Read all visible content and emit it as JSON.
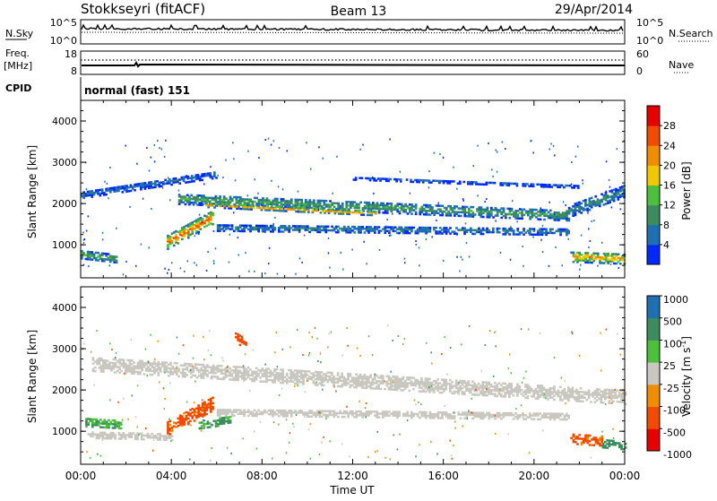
{
  "header": {
    "station": "Stokkseyri (fitACF)",
    "beam": "Beam 13",
    "date": "29/Apr/2014"
  },
  "noise_panel": {
    "left_label": "N.Sky",
    "left_ticks": [
      "10^5",
      "10^0"
    ],
    "right_ticks": [
      "10^5",
      "10^0"
    ],
    "right_label": "N.Search"
  },
  "freq_panel": {
    "left_label_line1": "Freq.",
    "left_label_line2": "[MHz]",
    "left_ticks": [
      "18",
      "8"
    ],
    "right_ticks": [
      "60",
      "0"
    ],
    "right_label": "Nave"
  },
  "cpid": {
    "label": "CPID",
    "value": "normal (fast) 151"
  },
  "time_axis": {
    "xlabel": "Time UT",
    "ticks": [
      "00:00",
      "04:00",
      "08:00",
      "12:00",
      "16:00",
      "20:00",
      "00:00"
    ]
  },
  "colors": {
    "power_scale": [
      "#0028ff",
      "#1f6fb4",
      "#3c8c5f",
      "#4cc03c",
      "#f0c800",
      "#f08c00",
      "#f04b00",
      "#e60000"
    ],
    "velocity_scale": [
      "#e60000",
      "#f04b00",
      "#f08c00",
      "#c8c8c0",
      "#4cc03c",
      "#3c8c5f",
      "#1f6fb4"
    ]
  },
  "chart_data": [
    {
      "type": "heatmap",
      "title": "",
      "xlabel": "Time UT",
      "ylabel": "Slant Range [km]",
      "x_unit": "hours UT",
      "xlim": [
        0,
        24
      ],
      "ylim": [
        200,
        4500
      ],
      "yticks": [
        "1000",
        "2000",
        "3000",
        "4000"
      ],
      "colorbar": {
        "label": "Power [dB]",
        "ticks": [
          "4",
          "8",
          "12",
          "16",
          "20",
          "24",
          "28"
        ],
        "range": [
          0,
          30
        ]
      },
      "features": [
        {
          "name": "band_main",
          "start_h": 4.3,
          "end_h": 21.5,
          "range_start_km": 2100,
          "range_end_km": 1700,
          "width_km": 260,
          "power_db": 12
        },
        {
          "name": "band_main_core",
          "start_h": 5.5,
          "end_h": 13.0,
          "range_start_km": 1950,
          "range_end_km": 1750,
          "width_km": 110,
          "power_db": 24
        },
        {
          "name": "band_lower",
          "start_h": 6.0,
          "end_h": 21.5,
          "range_start_km": 1400,
          "range_end_km": 1300,
          "width_km": 160,
          "power_db": 8
        },
        {
          "name": "band_upper",
          "start_h": 0.0,
          "end_h": 6.0,
          "range_start_km": 2200,
          "range_end_km": 2700,
          "width_km": 180,
          "power_db": 6
        },
        {
          "name": "band_high",
          "start_h": 12.0,
          "end_h": 22.0,
          "range_start_km": 2600,
          "range_end_km": 2400,
          "width_km": 80,
          "power_db": 5
        },
        {
          "name": "patch_0400",
          "start_h": 3.8,
          "end_h": 5.8,
          "range_start_km": 1050,
          "range_end_km": 1650,
          "width_km": 330,
          "power_db": 26
        },
        {
          "name": "patch_0000",
          "start_h": 0.0,
          "end_h": 1.6,
          "range_start_km": 750,
          "range_end_km": 650,
          "width_km": 200,
          "power_db": 14
        },
        {
          "name": "patch_2200",
          "start_h": 21.6,
          "end_h": 24.0,
          "range_start_km": 700,
          "range_end_km": 650,
          "width_km": 260,
          "power_db": 22
        },
        {
          "name": "band_2000_2300",
          "start_h": 21.5,
          "end_h": 24.0,
          "range_start_km": 1800,
          "range_end_km": 2300,
          "width_km": 300,
          "power_db": 10
        }
      ]
    },
    {
      "type": "heatmap",
      "title": "",
      "xlabel": "Time UT",
      "ylabel": "Slant Range [km]",
      "x_unit": "hours UT",
      "xlim": [
        0,
        24
      ],
      "ylim": [
        200,
        4500
      ],
      "yticks": [
        "1000",
        "2000",
        "3000",
        "4000"
      ],
      "colorbar": {
        "label": "Velocity [m s^-1]",
        "ticks": [
          "1000",
          "500",
          "100",
          "25",
          "-25",
          "-100",
          "-500",
          "-1000"
        ],
        "range": [
          -1000,
          1000
        ]
      },
      "features": [
        {
          "name": "ground_scatter_main",
          "start_h": 0.5,
          "end_h": 24.0,
          "range_start_km": 2600,
          "range_end_km": 1800,
          "width_km": 320,
          "velocity_ms": 0
        },
        {
          "name": "ground_scatter_lower",
          "start_h": 6.0,
          "end_h": 21.5,
          "range_start_km": 1450,
          "range_end_km": 1350,
          "width_km": 170,
          "velocity_ms": 0
        },
        {
          "name": "ground_scatter_early",
          "start_h": 0.3,
          "end_h": 4.0,
          "range_start_km": 900,
          "range_end_km": 850,
          "width_km": 160,
          "velocity_ms": 0
        },
        {
          "name": "flow_0400",
          "start_h": 3.8,
          "end_h": 5.8,
          "range_start_km": 1050,
          "range_end_km": 1650,
          "width_km": 330,
          "velocity_ms": -150
        },
        {
          "name": "flow_0530",
          "start_h": 5.2,
          "end_h": 6.6,
          "range_start_km": 1150,
          "range_end_km": 1250,
          "width_km": 200,
          "velocity_ms": 120
        },
        {
          "name": "flow_0000",
          "start_h": 0.2,
          "end_h": 1.8,
          "range_start_km": 1200,
          "range_end_km": 1150,
          "width_km": 200,
          "velocity_ms": 90
        },
        {
          "name": "flow_0730",
          "start_h": 6.8,
          "end_h": 7.3,
          "range_start_km": 3250,
          "range_end_km": 3100,
          "width_km": 250,
          "velocity_ms": -200
        },
        {
          "name": "flow_2200",
          "start_h": 21.6,
          "end_h": 23.0,
          "range_start_km": 800,
          "range_end_km": 750,
          "width_km": 240,
          "velocity_ms": -120
        },
        {
          "name": "flow_2330",
          "start_h": 23.0,
          "end_h": 24.0,
          "range_start_km": 700,
          "range_end_km": 650,
          "width_km": 220,
          "velocity_ms": 300
        }
      ]
    }
  ]
}
